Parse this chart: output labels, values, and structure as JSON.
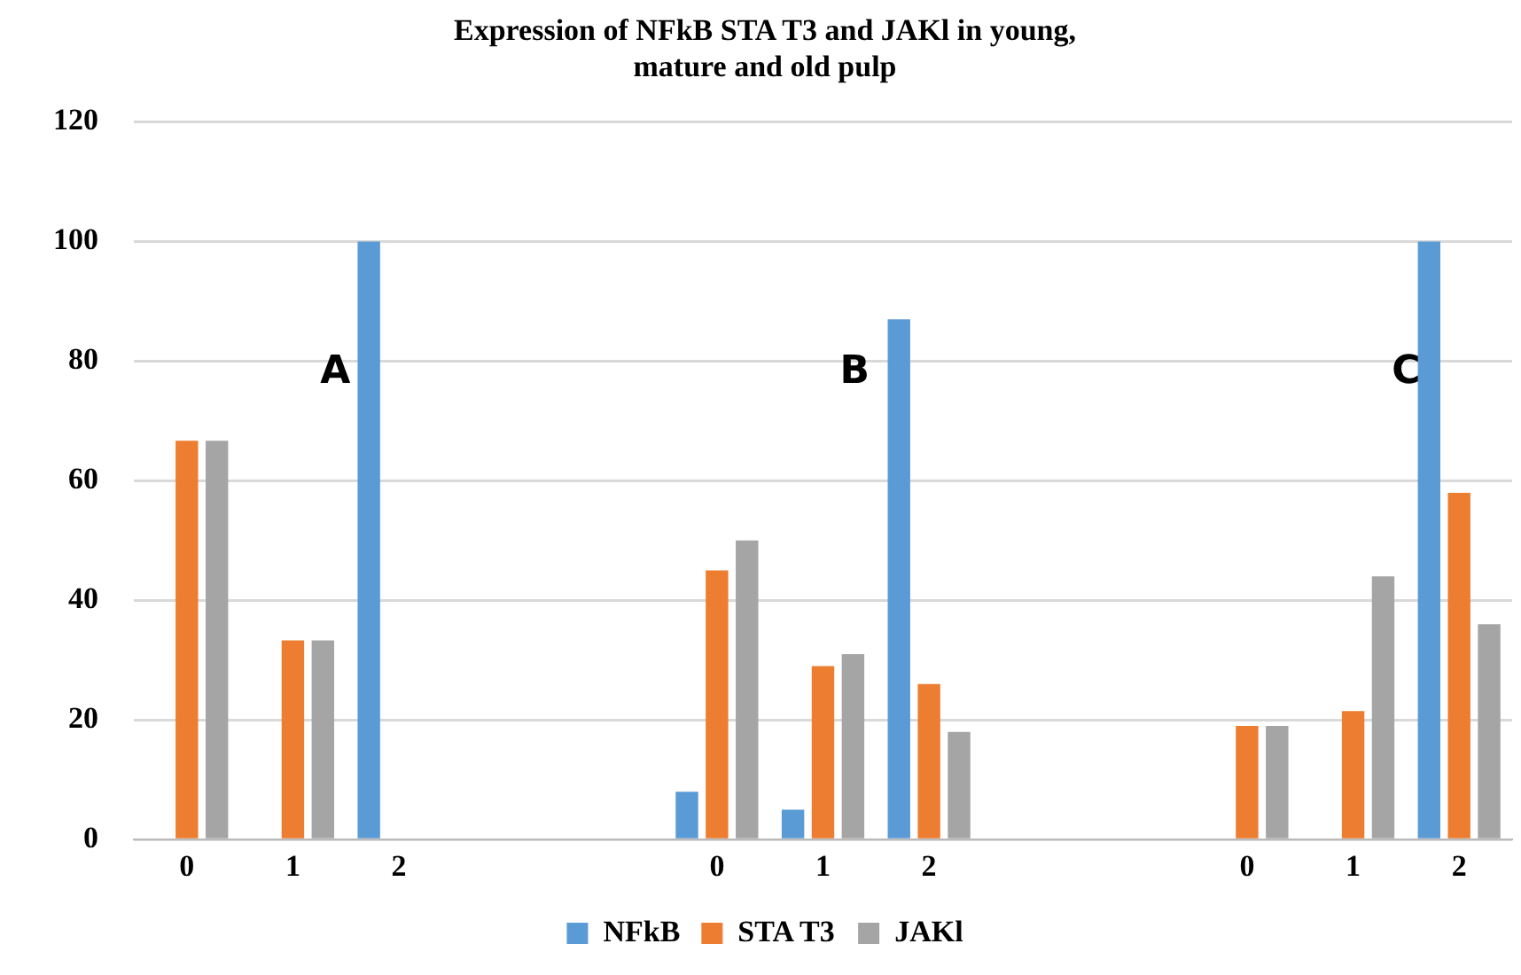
{
  "chart_data": {
    "type": "bar",
    "title": "Expression of NFkB STA T3 and JAKl in young, mature and old pulp",
    "categories": [
      "0",
      "1",
      "2",
      null,
      null,
      "0",
      "1",
      "2",
      null,
      null,
      "0",
      "1",
      "2"
    ],
    "series": [
      {
        "name": "NFkB",
        "color": "#5b9bd5",
        "values": [
          0,
          0,
          100,
          null,
          null,
          8,
          5,
          87,
          null,
          null,
          0,
          0,
          100
        ]
      },
      {
        "name": "STA T3",
        "color": "#ed7d31",
        "values": [
          66.7,
          33.3,
          0,
          null,
          null,
          45,
          29,
          26,
          null,
          null,
          19,
          21.5,
          58
        ]
      },
      {
        "name": "JAKl",
        "color": "#a5a5a5",
        "values": [
          66.7,
          33.3,
          0,
          null,
          null,
          50,
          31,
          18,
          null,
          null,
          19,
          44,
          36
        ]
      }
    ],
    "annotations": [
      "A",
      "B",
      "C"
    ],
    "ylim": [
      0,
      120
    ],
    "yticks": [
      0,
      20,
      40,
      60,
      80,
      100,
      120
    ],
    "grid": "y",
    "legend": "bottom"
  }
}
